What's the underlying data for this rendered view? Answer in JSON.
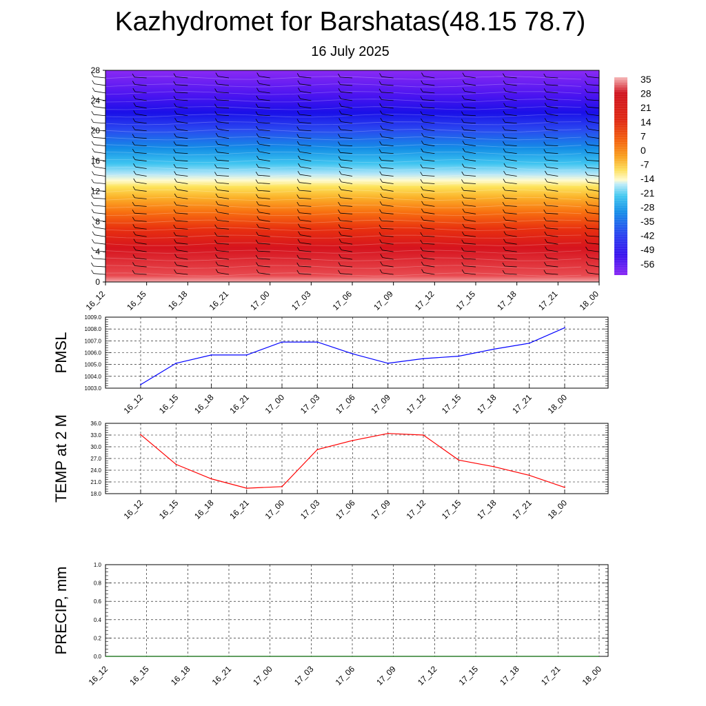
{
  "header": {
    "title": "Kazhydromet for Barshatas(48.15 78.7)",
    "subtitle": "16 July 2025"
  },
  "chart_data": [
    {
      "type": "heatmap",
      "x_labels": [
        "16_12",
        "16_15",
        "16_18",
        "16_21",
        "17_00",
        "17_03",
        "17_06",
        "17_09",
        "17_12",
        "17_15",
        "17_18",
        "17_21",
        "18_00"
      ],
      "ylim": [
        0,
        28
      ],
      "y_ticks": [
        "0",
        "4",
        "8",
        "12",
        "16",
        "20",
        "24",
        "28"
      ],
      "colorbar_labels": [
        "35",
        "28",
        "21",
        "14",
        "7",
        "0",
        "-7",
        "-14",
        "-21",
        "-28",
        "-35",
        "-42",
        "-49",
        "-56"
      ],
      "colorbar_colors": [
        "#f6b8b8",
        "#e8303a",
        "#d00020",
        "#e02010",
        "#f06010",
        "#f89a18",
        "#fcd23a",
        "#fffcc8",
        "#b8e8f8",
        "#40c8f0",
        "#1090e8",
        "#2040f0",
        "#2010e0",
        "#7a1cf2"
      ],
      "value_range": [
        -56,
        35
      ],
      "wind_barbs": true,
      "grid": false
    },
    {
      "type": "line",
      "ylabel": "PMSL",
      "x": [
        "16_12",
        "16_15",
        "16_18",
        "16_21",
        "17_00",
        "17_03",
        "17_06",
        "17_09",
        "17_12",
        "17_15",
        "17_18",
        "17_21",
        "18_00"
      ],
      "values": [
        1003.3,
        1005.1,
        1005.8,
        1005.8,
        1006.9,
        1006.9,
        1005.9,
        1005.1,
        1005.5,
        1005.7,
        1006.3,
        1006.8,
        1008.1
      ],
      "ylim": [
        1003.0,
        1009.0
      ],
      "y_ticks": [
        "1003.0",
        "1004.0",
        "1005.0",
        "1006.0",
        "1007.0",
        "1008.0",
        "1009.0"
      ],
      "color": "#0000ff",
      "grid": true
    },
    {
      "type": "line",
      "ylabel": "TEMP at 2 M",
      "x": [
        "16_12",
        "16_15",
        "16_18",
        "16_21",
        "17_00",
        "17_03",
        "17_06",
        "17_09",
        "17_12",
        "17_15",
        "17_18",
        "17_21",
        "18_00"
      ],
      "values": [
        33.1,
        25.5,
        21.8,
        19.4,
        19.8,
        29.3,
        31.6,
        33.4,
        33.0,
        26.6,
        24.9,
        22.7,
        19.6
      ],
      "ylim": [
        18.0,
        36.0
      ],
      "y_ticks": [
        "18.0",
        "21.0",
        "24.0",
        "27.0",
        "30.0",
        "33.0",
        "36.0"
      ],
      "color": "#ff0000",
      "grid": true
    },
    {
      "type": "line",
      "ylabel": "PRECIP, mm",
      "x_labels": [
        "16_12",
        "16_15",
        "16_18",
        "16_21",
        "17_00",
        "17_03",
        "17_06",
        "17_09",
        "17_12",
        "17_15",
        "17_18",
        "17_21",
        "18_00"
      ],
      "values": [
        0,
        0,
        0,
        0,
        0,
        0,
        0,
        0,
        0,
        0,
        0,
        0,
        0
      ],
      "ylim": [
        0.0,
        1.0
      ],
      "y_ticks": [
        "0.0",
        "0.2",
        "0.4",
        "0.6",
        "0.8",
        "1.0"
      ],
      "color": "#006400",
      "grid": true
    }
  ]
}
